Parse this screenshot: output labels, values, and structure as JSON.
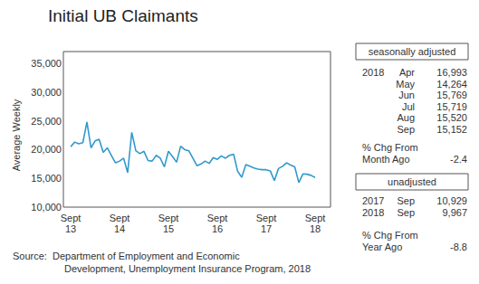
{
  "chart_data": {
    "type": "line",
    "title": "Initial UB Claimants",
    "y_label": "Average Weekly",
    "categories": [
      "Sept\n13",
      null,
      null,
      null,
      null,
      null,
      null,
      null,
      null,
      null,
      null,
      null,
      "Sept\n14",
      null,
      null,
      null,
      null,
      null,
      null,
      null,
      null,
      null,
      null,
      null,
      "Sept\n15",
      null,
      null,
      null,
      null,
      null,
      null,
      null,
      null,
      null,
      null,
      null,
      "Sept\n16",
      null,
      null,
      null,
      null,
      null,
      null,
      null,
      null,
      null,
      null,
      null,
      "Sept\n17",
      null,
      null,
      null,
      null,
      null,
      null,
      null,
      null,
      null,
      null,
      null,
      "Sept\n18"
    ],
    "values": [
      20500,
      21300,
      21000,
      21200,
      24800,
      20300,
      21500,
      21800,
      19500,
      20300,
      19000,
      17700,
      18000,
      18500,
      16000,
      23000,
      19800,
      19300,
      19700,
      18100,
      18000,
      19000,
      18500,
      17000,
      19700,
      18800,
      17800,
      20600,
      20000,
      19800,
      18500,
      17200,
      17500,
      18000,
      17600,
      18600,
      18300,
      18900,
      18500,
      19000,
      19200,
      16200,
      15200,
      17400,
      17100,
      16800,
      16600,
      16500,
      16500,
      16300,
      14600,
      16700,
      17100,
      17700,
      17300,
      16993,
      14264,
      15769,
      15719,
      15520,
      15152
    ],
    "color": "#3399cc",
    "marker": "none",
    "grid": false,
    "ylim": [
      10000,
      35000
    ],
    "yticks": [
      {
        "value": 10000,
        "label": "10,000"
      },
      {
        "value": 15000,
        "label": "15,000"
      },
      {
        "value": 20000,
        "label": "20,000"
      },
      {
        "value": 25000,
        "label": "25,000"
      },
      {
        "value": 30000,
        "label": "30,000"
      },
      {
        "value": 35000,
        "label": "35,000"
      }
    ],
    "annotations": {
      "seasonally_adjusted": {
        "heading": "seasonally adjusted",
        "year": "2018",
        "rows": [
          {
            "month": "Apr",
            "value": 16993,
            "label": "16,993"
          },
          {
            "month": "May",
            "value": 14264,
            "label": "14,264"
          },
          {
            "month": "Jun",
            "value": 15769,
            "label": "15,769"
          },
          {
            "month": "Jul",
            "value": 15719,
            "label": "15,719"
          },
          {
            "month": "Aug",
            "value": 15520,
            "label": "15,520"
          },
          {
            "month": "Sep",
            "value": 15152,
            "label": "15,152"
          }
        ],
        "change_label": [
          "% Chg From",
          "Month Ago"
        ],
        "change": -2.4
      },
      "unadjusted": {
        "heading": "unadjusted",
        "rows": [
          {
            "year": "2017",
            "month": "Sep",
            "value": 10929,
            "label": "10,929"
          },
          {
            "year": "2018",
            "month": "Sep",
            "value": 9967,
            "label": "9,967"
          }
        ],
        "change_label": [
          "% Chg From",
          "Year Ago"
        ],
        "change": -8.8
      },
      "source": [
        "Source:  Department of Employment and Economic",
        "Development, Unemployment Insurance Program, 2018"
      ]
    }
  }
}
